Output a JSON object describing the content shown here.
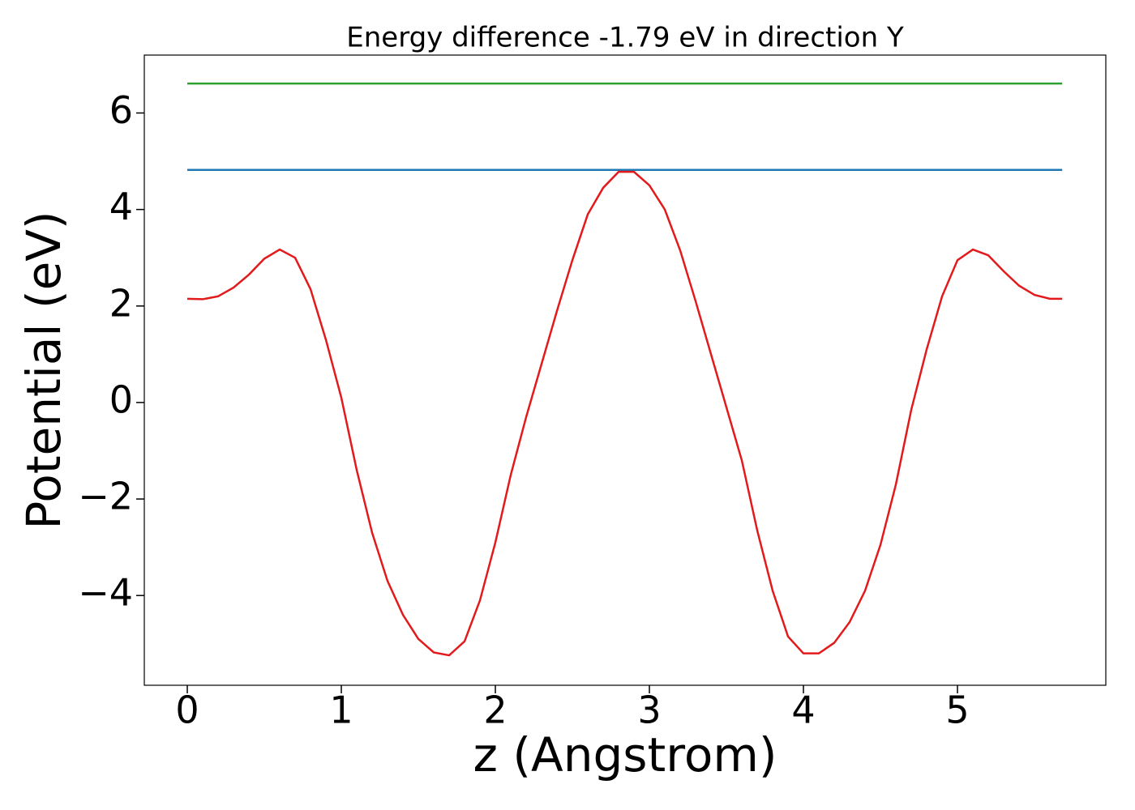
{
  "chart_data": {
    "type": "line",
    "title": "Energy difference -1.79 eV in direction Y",
    "x_label": "z (Angstrom)",
    "y_label": "Potential (eV)",
    "xlim": [
      -0.279,
      5.963
    ],
    "ylim": [
      -5.86,
      7.2
    ],
    "xticks": [
      0,
      1,
      2,
      3,
      4,
      5
    ],
    "yticks": [
      {
        "value": -4,
        "label": "−4"
      },
      {
        "value": -2,
        "label": "−2"
      },
      0,
      2,
      4,
      6
    ],
    "series": [
      {
        "color": "#1f77b4",
        "x": [
          0,
          5.68
        ],
        "values": [
          4.82,
          4.82
        ]
      },
      {
        "color": "#2ca02c",
        "x": [
          0,
          5.68
        ],
        "values": [
          6.61,
          6.61
        ]
      },
      {
        "color": "#e31a1c",
        "x": [
          0,
          0.1,
          0.2,
          0.3,
          0.4,
          0.5,
          0.6,
          0.7,
          0.8,
          0.9,
          1.0,
          1.1,
          1.2,
          1.3,
          1.4,
          1.5,
          1.6,
          1.7,
          1.8,
          1.9,
          2.0,
          2.1,
          2.2,
          2.3,
          2.4,
          2.5,
          2.6,
          2.7,
          2.8,
          2.9,
          3.0,
          3.1,
          3.2,
          3.3,
          3.4,
          3.5,
          3.6,
          3.7,
          3.8,
          3.9,
          4.0,
          4.1,
          4.2,
          4.3,
          4.4,
          4.5,
          4.6,
          4.7,
          4.8,
          4.9,
          5.0,
          5.1,
          5.2,
          5.3,
          5.4,
          5.5,
          5.6,
          5.68
        ],
        "values": [
          2.15,
          2.14,
          2.2,
          2.38,
          2.65,
          2.98,
          3.17,
          3.0,
          2.35,
          1.3,
          0.1,
          -1.4,
          -2.7,
          -3.7,
          -4.4,
          -4.9,
          -5.18,
          -5.24,
          -4.95,
          -4.1,
          -2.9,
          -1.5,
          -0.3,
          0.8,
          1.9,
          2.95,
          3.9,
          4.45,
          4.78,
          4.78,
          4.5,
          4.0,
          3.15,
          2.1,
          1.0,
          -0.1,
          -1.2,
          -2.65,
          -3.9,
          -4.85,
          -5.2,
          -5.2,
          -4.98,
          -4.55,
          -3.9,
          -2.95,
          -1.7,
          -0.15,
          1.1,
          2.2,
          2.95,
          3.17,
          3.05,
          2.72,
          2.42,
          2.23,
          2.15,
          2.15
        ]
      }
    ]
  }
}
